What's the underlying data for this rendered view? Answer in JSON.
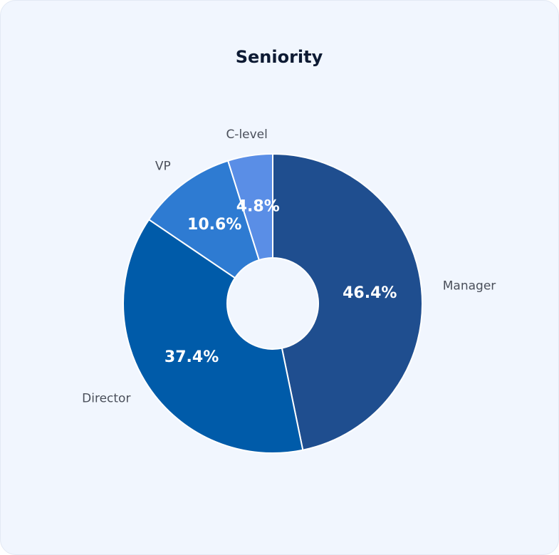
{
  "chart_data": {
    "type": "donut",
    "title": "Seniority",
    "categories": [
      "Manager",
      "Director",
      "VP",
      "C-level"
    ],
    "values": [
      46.4,
      37.4,
      10.6,
      4.8
    ],
    "value_labels": [
      "46.4%",
      "37.4%",
      "10.6%",
      "4.8%"
    ],
    "colors": [
      "#1f4e8f",
      "#005ba9",
      "#2e7bd2",
      "#5a8ee6"
    ]
  }
}
